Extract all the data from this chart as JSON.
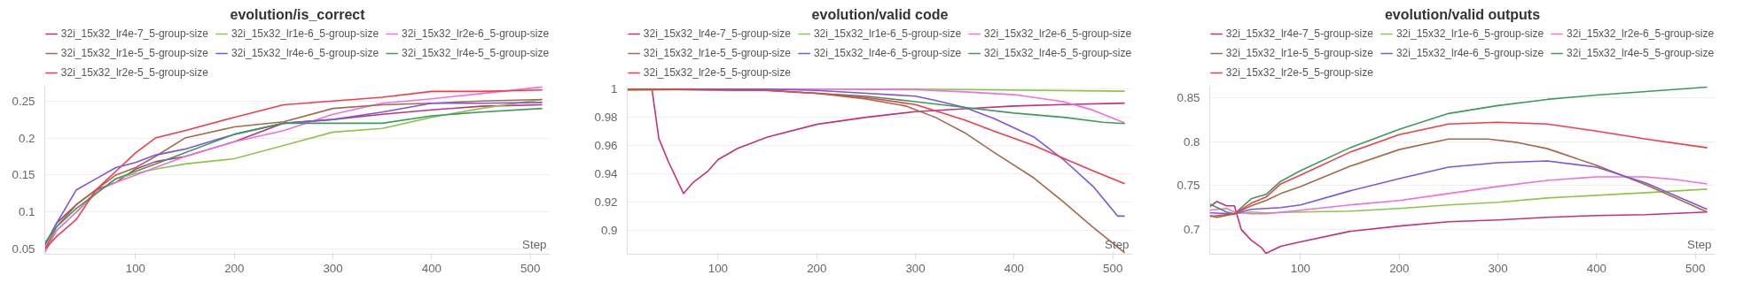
{
  "chart_data": [
    {
      "type": "line",
      "title": "evolution/is_correct",
      "xlabel": "Step",
      "legend": "top",
      "grid": "y",
      "xlim": [
        8,
        520
      ],
      "ylim": [
        0.043,
        0.27
      ],
      "xticks": [
        100,
        200,
        300,
        400,
        500
      ],
      "yticks": [
        0.05,
        0.1,
        0.15,
        0.2,
        0.25
      ],
      "x": [
        8,
        20,
        40,
        60,
        80,
        100,
        120,
        150,
        200,
        250,
        300,
        350,
        400,
        450,
        512
      ],
      "series": [
        {
          "name": "32i_15x32_lr4e-7_5-group-size",
          "color": "#c2327a",
          "values": [
            0.055,
            0.085,
            0.11,
            0.13,
            0.14,
            0.158,
            0.168,
            0.175,
            0.195,
            0.22,
            0.225,
            0.232,
            0.238,
            0.243,
            0.245
          ]
        },
        {
          "name": "32i_15x32_lr1e-6_5-group-size",
          "color": "#8cc548",
          "values": [
            0.05,
            0.075,
            0.1,
            0.125,
            0.145,
            0.152,
            0.158,
            0.165,
            0.172,
            0.19,
            0.208,
            0.213,
            0.228,
            0.24,
            0.252
          ]
        },
        {
          "name": "32i_15x32_lr2e-6_5-group-size",
          "color": "#ef6fdc",
          "values": [
            0.045,
            0.075,
            0.1,
            0.128,
            0.14,
            0.15,
            0.16,
            0.175,
            0.195,
            0.21,
            0.232,
            0.247,
            0.253,
            0.26,
            0.269
          ]
        },
        {
          "name": "32i_15x32_lr1e-5_5-group-size",
          "color": "#a5694a",
          "values": [
            0.05,
            0.08,
            0.11,
            0.13,
            0.15,
            0.16,
            0.175,
            0.2,
            0.215,
            0.222,
            0.24,
            0.245,
            0.247,
            0.25,
            0.252
          ]
        },
        {
          "name": "32i_15x32_lr4e-6_5-group-size",
          "color": "#7c55dd",
          "values": [
            0.055,
            0.085,
            0.13,
            0.145,
            0.16,
            0.167,
            0.177,
            0.185,
            0.205,
            0.22,
            0.225,
            0.235,
            0.247,
            0.247,
            0.248
          ]
        },
        {
          "name": "32i_15x32_lr4e-5_5-group-size",
          "color": "#3c9a5c",
          "values": [
            0.058,
            0.08,
            0.105,
            0.125,
            0.145,
            0.155,
            0.165,
            0.18,
            0.205,
            0.22,
            0.22,
            0.22,
            0.23,
            0.235,
            0.24
          ]
        },
        {
          "name": "32i_15x32_lr2e-5_5-group-size",
          "color": "#f23c4c",
          "values": [
            0.05,
            0.067,
            0.09,
            0.13,
            0.155,
            0.18,
            0.2,
            0.21,
            0.228,
            0.245,
            0.25,
            0.255,
            0.263,
            0.263,
            0.265
          ]
        }
      ]
    },
    {
      "type": "line",
      "title": "evolution/valid code",
      "xlabel": "Step",
      "legend": "top",
      "grid": "y",
      "xlim": [
        8,
        520
      ],
      "ylim": [
        0.883,
        1.002
      ],
      "xticks": [
        100,
        200,
        300,
        400,
        500
      ],
      "yticks": [
        0.9,
        0.92,
        0.94,
        0.96,
        0.98,
        1
      ],
      "series": [
        {
          "name": "32i_15x32_lr4e-7_5-group-size",
          "color": "#c2327a",
          "x": [
            8,
            33,
            40,
            50,
            65,
            75,
            90,
            100,
            120,
            150,
            200,
            250,
            300,
            350,
            400,
            450,
            512
          ],
          "values": [
            1,
            1,
            0.965,
            0.948,
            0.926,
            0.934,
            0.942,
            0.95,
            0.958,
            0.966,
            0.975,
            0.98,
            0.984,
            0.986,
            0.988,
            0.989,
            0.99
          ]
        },
        {
          "name": "32i_15x32_lr1e-6_5-group-size",
          "color": "#8cc548",
          "x": [
            8,
            100,
            300,
            512
          ],
          "values": [
            0.999,
            1,
            1,
            0.9985
          ]
        },
        {
          "name": "32i_15x32_lr2e-6_5-group-size",
          "color": "#ef6fdc",
          "x": [
            8,
            200,
            300,
            350,
            400,
            450,
            480,
            512
          ],
          "values": [
            1,
            1,
            0.9995,
            0.998,
            0.996,
            0.991,
            0.985,
            0.976
          ]
        },
        {
          "name": "32i_15x32_lr1e-5_5-group-size",
          "color": "#a5694a",
          "x": [
            8,
            150,
            200,
            250,
            290,
            320,
            350,
            380,
            420,
            450,
            480,
            512
          ],
          "values": [
            1,
            0.999,
            0.997,
            0.993,
            0.988,
            0.98,
            0.969,
            0.955,
            0.937,
            0.92,
            0.902,
            0.884
          ]
        },
        {
          "name": "32i_15x32_lr4e-6_5-group-size",
          "color": "#7c55dd",
          "x": [
            8,
            150,
            200,
            250,
            300,
            320,
            350,
            380,
            420,
            450,
            480,
            505,
            512
          ],
          "values": [
            1,
            1,
            0.999,
            0.997,
            0.995,
            0.992,
            0.987,
            0.979,
            0.966,
            0.95,
            0.931,
            0.91,
            0.91
          ]
        },
        {
          "name": "32i_15x32_lr4e-5_5-group-size",
          "color": "#3c9a5c",
          "x": [
            8,
            150,
            200,
            250,
            300,
            350,
            400,
            450,
            490,
            512
          ],
          "values": [
            1,
            0.999,
            0.997,
            0.995,
            0.991,
            0.987,
            0.983,
            0.98,
            0.9765,
            0.9755
          ]
        },
        {
          "name": "32i_15x32_lr2e-5_5-group-size",
          "color": "#f23c4c",
          "x": [
            8,
            150,
            200,
            250,
            300,
            350,
            380,
            420,
            450,
            480,
            512
          ],
          "values": [
            1,
            0.999,
            0.997,
            0.994,
            0.989,
            0.978,
            0.97,
            0.96,
            0.951,
            0.942,
            0.933
          ]
        }
      ]
    },
    {
      "type": "line",
      "title": "evolution/valid outputs",
      "xlabel": "Step",
      "legend": "top",
      "grid": "y",
      "xlim": [
        8,
        520
      ],
      "ylim": [
        0.672,
        0.863
      ],
      "xticks": [
        100,
        200,
        300,
        400,
        500
      ],
      "yticks": [
        0.7,
        0.75,
        0.8,
        0.85
      ],
      "series": [
        {
          "name": "32i_15x32_lr4e-7_5-group-size",
          "color": "#c2327a",
          "x": [
            8,
            15,
            25,
            33,
            40,
            50,
            60,
            65,
            80,
            100,
            150,
            200,
            250,
            300,
            350,
            400,
            450,
            512
          ],
          "values": [
            0.726,
            0.732,
            0.727,
            0.727,
            0.7,
            0.688,
            0.68,
            0.673,
            0.681,
            0.686,
            0.698,
            0.704,
            0.709,
            0.711,
            0.714,
            0.716,
            0.717,
            0.72
          ]
        },
        {
          "name": "32i_15x32_lr1e-6_5-group-size",
          "color": "#8cc548",
          "x": [
            8,
            15,
            33,
            50,
            65,
            100,
            150,
            200,
            250,
            300,
            350,
            400,
            450,
            512
          ],
          "values": [
            0.716,
            0.714,
            0.718,
            0.72,
            0.719,
            0.72,
            0.721,
            0.724,
            0.728,
            0.731,
            0.736,
            0.739,
            0.742,
            0.746
          ]
        },
        {
          "name": "32i_15x32_lr2e-6_5-group-size",
          "color": "#ef6fdc",
          "x": [
            8,
            25,
            33,
            50,
            65,
            100,
            150,
            200,
            250,
            300,
            350,
            400,
            450,
            480,
            512
          ],
          "values": [
            0.722,
            0.724,
            0.72,
            0.718,
            0.718,
            0.722,
            0.728,
            0.733,
            0.741,
            0.749,
            0.756,
            0.76,
            0.76,
            0.757,
            0.752
          ]
        },
        {
          "name": "32i_15x32_lr1e-5_5-group-size",
          "color": "#a5694a",
          "x": [
            8,
            15,
            33,
            50,
            65,
            80,
            100,
            150,
            200,
            250,
            290,
            320,
            350,
            400,
            450,
            512
          ],
          "values": [
            0.716,
            0.714,
            0.718,
            0.727,
            0.733,
            0.741,
            0.749,
            0.772,
            0.791,
            0.803,
            0.803,
            0.799,
            0.792,
            0.773,
            0.751,
            0.72
          ]
        },
        {
          "name": "32i_15x32_lr4e-6_5-group-size",
          "color": "#7c55dd",
          "x": [
            8,
            33,
            50,
            80,
            100,
            150,
            200,
            250,
            300,
            350,
            400,
            450,
            512
          ],
          "values": [
            0.719,
            0.718,
            0.723,
            0.725,
            0.728,
            0.744,
            0.758,
            0.771,
            0.776,
            0.778,
            0.771,
            0.753,
            0.723
          ]
        },
        {
          "name": "32i_15x32_lr4e-5_5-group-size",
          "color": "#3c9a5c",
          "x": [
            8,
            25,
            33,
            50,
            65,
            80,
            100,
            150,
            200,
            250,
            300,
            350,
            400,
            450,
            512
          ],
          "values": [
            0.729,
            0.72,
            0.718,
            0.735,
            0.74,
            0.755,
            0.767,
            0.793,
            0.814,
            0.832,
            0.841,
            0.848,
            0.853,
            0.857,
            0.862
          ]
        },
        {
          "name": "32i_15x32_lr2e-5_5-group-size",
          "color": "#f23c4c",
          "x": [
            8,
            33,
            50,
            65,
            80,
            100,
            150,
            200,
            250,
            300,
            350,
            400,
            450,
            512
          ],
          "values": [
            0.715,
            0.718,
            0.73,
            0.737,
            0.752,
            0.762,
            0.788,
            0.808,
            0.82,
            0.822,
            0.82,
            0.812,
            0.803,
            0.793
          ]
        }
      ]
    }
  ]
}
